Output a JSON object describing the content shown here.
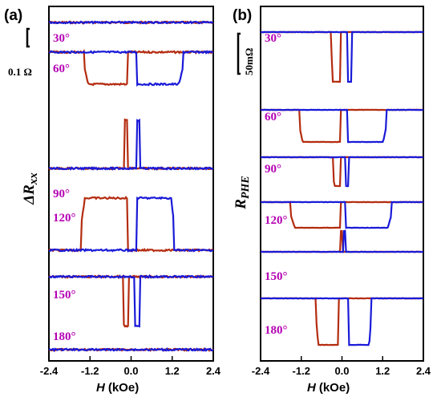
{
  "chart_data": [
    {
      "type": "line",
      "panel_label": "(a)",
      "xlabel_var": "H",
      "xlabel_unit": "(kOe)",
      "ylabel": "ΔR",
      "ylabel_sub": "xx",
      "scale_bar_label": "0.1 Ω",
      "xticks": [
        "-2.4",
        "-1.2",
        "0.0",
        "1.2",
        "2.4"
      ],
      "xlim": [
        -2.4,
        2.4
      ],
      "series_colors": {
        "down_sweep": "#b42c10",
        "up_sweep": "#1a1ad8"
      },
      "traces": [
        {
          "angle": "30°",
          "baseline": 28,
          "step_amp": 0,
          "up_switch_h": 0.1,
          "up_return_h": 0.1,
          "down_switch_h": -0.1,
          "down_return_h": -0.1,
          "kind": "flat"
        },
        {
          "angle": "60°",
          "baseline": 65,
          "step_amp": 40,
          "up_switch_h": 0.15,
          "up_return_h": 1.5,
          "down_switch_h": -0.1,
          "down_return_h": -1.35,
          "kind": "dip"
        },
        {
          "angle": "90°",
          "baseline": 210,
          "step_amp": -60,
          "up_switch_h": 0.15,
          "up_return_h": 0.25,
          "down_switch_h": -0.1,
          "down_return_h": -0.2,
          "kind": "spike"
        },
        {
          "angle": "120°",
          "baseline": 312,
          "step_amp": -65,
          "up_switch_h": 0.15,
          "up_return_h": 1.25,
          "down_switch_h": -0.1,
          "down_return_h": -1.45,
          "kind": "peak"
        },
        {
          "angle": "150°",
          "baseline": 345,
          "step_amp": 62,
          "up_switch_h": 0.12,
          "up_return_h": 0.25,
          "down_switch_h": -0.08,
          "down_return_h": -0.22,
          "kind": "dip-narrow"
        },
        {
          "angle": "180°",
          "baseline": 436,
          "step_amp": 0,
          "up_switch_h": 0.1,
          "up_return_h": 0.1,
          "down_switch_h": -0.1,
          "down_return_h": -0.1,
          "kind": "flat"
        }
      ]
    },
    {
      "type": "line",
      "panel_label": "(b)",
      "xlabel_var": "H",
      "xlabel_unit": "(kOe)",
      "ylabel": "R",
      "ylabel_sub": "PHE",
      "scale_bar_label": "50mΩ",
      "xticks": [
        "-2.4",
        "-1.2",
        "0.0",
        "1.2",
        "2.4"
      ],
      "xlim": [
        -2.4,
        2.4
      ],
      "series_colors": {
        "down_sweep": "#b42c10",
        "up_sweep": "#1a1ad8"
      },
      "traces": [
        {
          "angle": "30°",
          "baseline": 40,
          "step_amp": 62,
          "up_switch_h": 0.15,
          "up_return_h": 0.3,
          "down_switch_h": -0.05,
          "down_return_h": -0.3,
          "kind": "step-narrow"
        },
        {
          "angle": "60°",
          "baseline": 137,
          "step_amp": 40,
          "up_switch_h": 0.15,
          "up_return_h": 1.3,
          "down_switch_h": -0.05,
          "down_return_h": -1.25,
          "kind": "step-wide"
        },
        {
          "angle": "90°",
          "baseline": 196,
          "step_amp": 36,
          "up_switch_h": 0.1,
          "up_return_h": 0.2,
          "down_switch_h": -0.05,
          "down_return_h": -0.25,
          "kind": "step-narrow"
        },
        {
          "angle": "120°",
          "baseline": 252,
          "step_amp": 32,
          "up_switch_h": 0.1,
          "up_return_h": 1.45,
          "down_switch_h": -0.05,
          "down_return_h": -1.5,
          "kind": "step-wide"
        },
        {
          "angle": "150°",
          "baseline": 314,
          "step_amp": -26,
          "up_switch_h": 0.05,
          "up_return_h": 0.12,
          "down_switch_h": 0.0,
          "down_return_h": -0.05,
          "kind": "spike-up"
        },
        {
          "angle": "180°",
          "baseline": 372,
          "step_amp": 58,
          "up_switch_h": 0.2,
          "up_return_h": 0.85,
          "down_switch_h": -0.1,
          "down_return_h": -0.75,
          "kind": "step-mid"
        }
      ]
    }
  ]
}
